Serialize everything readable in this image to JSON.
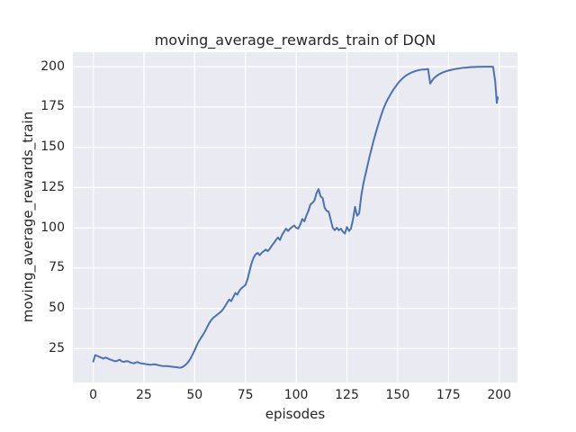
{
  "chart_data": {
    "type": "line",
    "title": "moving_average_rewards_train of DQN",
    "xlabel": "episodes",
    "ylabel": "moving_average_rewards_train",
    "x_ticks": [
      0,
      25,
      50,
      75,
      100,
      125,
      150,
      175,
      200
    ],
    "y_ticks": [
      25,
      50,
      75,
      100,
      125,
      150,
      175,
      200
    ],
    "xlim": [
      -10,
      209
    ],
    "ylim": [
      4,
      209
    ],
    "grid": true,
    "legend": "none",
    "style": {
      "line_color": "#4C72B0",
      "plot_bg": "#EAEAF2",
      "grid_color": "#FFFFFF",
      "text_color": "#262626",
      "figure_bg": "#FFFFFF",
      "line_width": 2
    },
    "series": [
      {
        "name": "moving_average_rewards_train",
        "points": [
          [
            0,
            17
          ],
          [
            1,
            21
          ],
          [
            2,
            20.5
          ],
          [
            3,
            20
          ],
          [
            4,
            19.4
          ],
          [
            5,
            18.8
          ],
          [
            6,
            19.5
          ],
          [
            7,
            19.1
          ],
          [
            8,
            18.4
          ],
          [
            9,
            18
          ],
          [
            10,
            17.5
          ],
          [
            11,
            17.2
          ],
          [
            12,
            17.6
          ],
          [
            13,
            18.2
          ],
          [
            14,
            17.2
          ],
          [
            15,
            16.8
          ],
          [
            16,
            17.1
          ],
          [
            17,
            17.3
          ],
          [
            18,
            16.6
          ],
          [
            19,
            16.2
          ],
          [
            20,
            15.9
          ],
          [
            21,
            16.4
          ],
          [
            22,
            16.6
          ],
          [
            23,
            16
          ],
          [
            24,
            15.8
          ],
          [
            25,
            15.6
          ],
          [
            26,
            15.4
          ],
          [
            27,
            15.2
          ],
          [
            28,
            15
          ],
          [
            29,
            15.1
          ],
          [
            30,
            15.3
          ],
          [
            31,
            15.1
          ],
          [
            32,
            14.8
          ],
          [
            33,
            14.5
          ],
          [
            34,
            14.3
          ],
          [
            35,
            14.2
          ],
          [
            36,
            14.2
          ],
          [
            37,
            14.1
          ],
          [
            38,
            13.9
          ],
          [
            39,
            13.8
          ],
          [
            40,
            13.6
          ],
          [
            41,
            13.5
          ],
          [
            42,
            13.3
          ],
          [
            43,
            13.2
          ],
          [
            44,
            13.6
          ],
          [
            45,
            14.5
          ],
          [
            46,
            15.5
          ],
          [
            47,
            17
          ],
          [
            48,
            19
          ],
          [
            49,
            21.5
          ],
          [
            50,
            24
          ],
          [
            51,
            27
          ],
          [
            52,
            29.5
          ],
          [
            53,
            31.5
          ],
          [
            54,
            33.5
          ],
          [
            55,
            35.5
          ],
          [
            56,
            38
          ],
          [
            57,
            40.5
          ],
          [
            58,
            42.5
          ],
          [
            59,
            44
          ],
          [
            60,
            45
          ],
          [
            61,
            46
          ],
          [
            62,
            47
          ],
          [
            63,
            48
          ],
          [
            64,
            49.5
          ],
          [
            65,
            51.5
          ],
          [
            66,
            53.5
          ],
          [
            67,
            55.5
          ],
          [
            68,
            54.5
          ],
          [
            69,
            57
          ],
          [
            70,
            59.5
          ],
          [
            71,
            58.5
          ],
          [
            72,
            61
          ],
          [
            73,
            62.5
          ],
          [
            74,
            63.5
          ],
          [
            75,
            64.5
          ],
          [
            76,
            68
          ],
          [
            77,
            73
          ],
          [
            78,
            78
          ],
          [
            79,
            81.5
          ],
          [
            80,
            83.5
          ],
          [
            81,
            84.5
          ],
          [
            82,
            83
          ],
          [
            83,
            84.5
          ],
          [
            84,
            85.5
          ],
          [
            85,
            86.5
          ],
          [
            86,
            85.5
          ],
          [
            87,
            87
          ],
          [
            88,
            89
          ],
          [
            89,
            90.5
          ],
          [
            90,
            92.5
          ],
          [
            91,
            94
          ],
          [
            92,
            92.5
          ],
          [
            93,
            95.5
          ],
          [
            94,
            97.5
          ],
          [
            95,
            99.5
          ],
          [
            96,
            98
          ],
          [
            97,
            99.5
          ],
          [
            98,
            100.5
          ],
          [
            99,
            101.5
          ],
          [
            100,
            100
          ],
          [
            101,
            99.5
          ],
          [
            102,
            102
          ],
          [
            103,
            105.5
          ],
          [
            104,
            104
          ],
          [
            105,
            107.5
          ],
          [
            106,
            110.5
          ],
          [
            107,
            114.5
          ],
          [
            108,
            115.5
          ],
          [
            109,
            117
          ],
          [
            110,
            121.5
          ],
          [
            111,
            124
          ],
          [
            112,
            119.5
          ],
          [
            113,
            118.5
          ],
          [
            114,
            112.5
          ],
          [
            115,
            110.5
          ],
          [
            116,
            110
          ],
          [
            117,
            105
          ],
          [
            118,
            100
          ],
          [
            119,
            98.5
          ],
          [
            120,
            100
          ],
          [
            121,
            98.5
          ],
          [
            122,
            99.5
          ],
          [
            123,
            97.5
          ],
          [
            124,
            96.5
          ],
          [
            125,
            100.5
          ],
          [
            126,
            98
          ],
          [
            127,
            99.5
          ],
          [
            128,
            105.5
          ],
          [
            129,
            113
          ],
          [
            130,
            107.5
          ],
          [
            131,
            109
          ],
          [
            132,
            119.5
          ],
          [
            133,
            127
          ],
          [
            134,
            132.5
          ],
          [
            135,
            138
          ],
          [
            136,
            143.5
          ],
          [
            137,
            148.5
          ],
          [
            138,
            153.5
          ],
          [
            139,
            158
          ],
          [
            140,
            162.5
          ],
          [
            141,
            166.5
          ],
          [
            142,
            170.5
          ],
          [
            143,
            174
          ],
          [
            144,
            177
          ],
          [
            145,
            179.5
          ],
          [
            146,
            181.8
          ],
          [
            147,
            184
          ],
          [
            148,
            186
          ],
          [
            149,
            187.8
          ],
          [
            150,
            189.5
          ],
          [
            151,
            191
          ],
          [
            152,
            192.3
          ],
          [
            153,
            193.4
          ],
          [
            154,
            194.4
          ],
          [
            155,
            195.2
          ],
          [
            156,
            195.9
          ],
          [
            157,
            196.5
          ],
          [
            158,
            197
          ],
          [
            159,
            197.4
          ],
          [
            160,
            197.7
          ],
          [
            161,
            198
          ],
          [
            162,
            198.2
          ],
          [
            163,
            198.3
          ],
          [
            164,
            198.4
          ],
          [
            165,
            198.5
          ],
          [
            166,
            189.5
          ],
          [
            167,
            191.5
          ],
          [
            168,
            193
          ],
          [
            169,
            194.1
          ],
          [
            170,
            195
          ],
          [
            171,
            195.7
          ],
          [
            172,
            196.3
          ],
          [
            173,
            196.8
          ],
          [
            174,
            197.2
          ],
          [
            175,
            197.6
          ],
          [
            176,
            197.9
          ],
          [
            177,
            198.2
          ],
          [
            178,
            198.5
          ],
          [
            179,
            198.7
          ],
          [
            180,
            198.9
          ],
          [
            181,
            199.1
          ],
          [
            182,
            199.3
          ],
          [
            183,
            199.4
          ],
          [
            184,
            199.5
          ],
          [
            185,
            199.6
          ],
          [
            186,
            199.7
          ],
          [
            187,
            199.8
          ],
          [
            188,
            199.8
          ],
          [
            189,
            199.9
          ],
          [
            190,
            199.9
          ],
          [
            191,
            199.9
          ],
          [
            192,
            200
          ],
          [
            193,
            200
          ],
          [
            194,
            200
          ],
          [
            195,
            200
          ],
          [
            196,
            200
          ],
          [
            197,
            199.9
          ],
          [
            198,
            191
          ],
          [
            198.8,
            177.5
          ],
          [
            199.3,
            181
          ]
        ]
      }
    ]
  }
}
